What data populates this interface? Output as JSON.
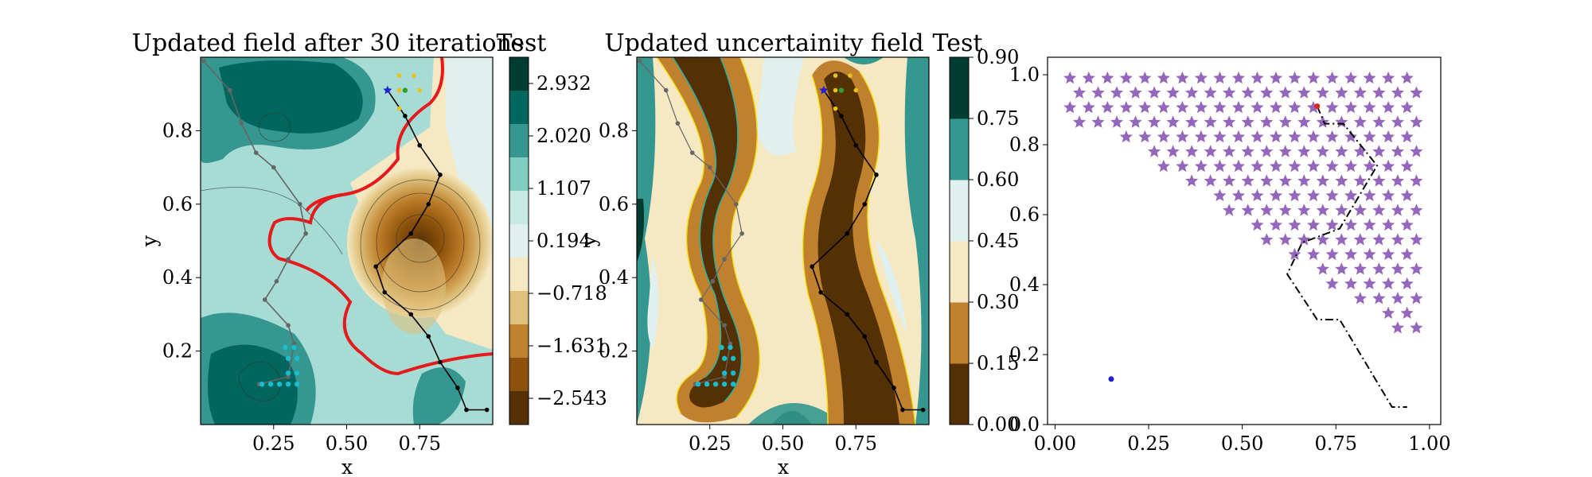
{
  "chart_data": [
    {
      "type": "contour",
      "title": "Updated field after 30 iterations",
      "colorbar_title": "Test",
      "xlabel": "x",
      "ylabel": "y",
      "xlim": [
        0,
        1
      ],
      "ylim": [
        0,
        1
      ],
      "xticks": [
        "0.25",
        "0.50",
        "0.75"
      ],
      "yticks": [
        "0.2",
        "0.4",
        "0.6",
        "0.8"
      ],
      "colorbar_ticks": [
        "2.932",
        "2.020",
        "1.107",
        "0.194",
        "−0.718",
        "−1.631",
        "−2.543"
      ],
      "colormap": [
        "#543005",
        "#8c510a",
        "#bf812d",
        "#dfc27d",
        "#f6e8c3",
        "#e0f0ee",
        "#c7eae5",
        "#80cdc1",
        "#35978f",
        "#01665e",
        "#003c30"
      ],
      "zero_contour_color": "#e41a1c",
      "path_gray": {
        "color": "#666666",
        "x": [
          0.01,
          0.1,
          0.14,
          0.19,
          0.25,
          0.34,
          0.36,
          0.3,
          0.26,
          0.22,
          0.3,
          0.32,
          0.3,
          0.2
        ],
        "y": [
          0.99,
          0.91,
          0.82,
          0.74,
          0.7,
          0.6,
          0.52,
          0.45,
          0.39,
          0.34,
          0.27,
          0.22,
          0.13,
          0.11
        ]
      },
      "path_black": {
        "color": "#000000",
        "x": [
          0.64,
          0.7,
          0.75,
          0.82,
          0.78,
          0.72,
          0.6,
          0.63,
          0.72,
          0.78,
          0.82,
          0.88,
          0.91,
          0.98
        ],
        "y": [
          0.91,
          0.84,
          0.76,
          0.68,
          0.6,
          0.52,
          0.43,
          0.36,
          0.3,
          0.24,
          0.17,
          0.1,
          0.04,
          0.04
        ]
      },
      "cyan_points": {
        "color": "#17becf",
        "x": [
          0.21,
          0.24,
          0.27,
          0.3,
          0.33,
          0.3,
          0.33,
          0.3,
          0.33,
          0.29,
          0.32
        ],
        "y": [
          0.11,
          0.11,
          0.11,
          0.11,
          0.11,
          0.14,
          0.14,
          0.18,
          0.18,
          0.21,
          0.21
        ]
      },
      "gold_points": {
        "color": "#e8c21a",
        "x": [
          0.68,
          0.73,
          0.68,
          0.75,
          0.68
        ],
        "y": [
          0.95,
          0.95,
          0.91,
          0.91,
          0.86
        ]
      },
      "blue_star": {
        "x": 0.64,
        "y": 0.91,
        "color": "#1f1fd6"
      },
      "green_point": {
        "x": 0.7,
        "y": 0.91,
        "color": "#2ca02c"
      }
    },
    {
      "type": "contour",
      "title": "Updated uncertainity field",
      "colorbar_title": "Test",
      "xlabel": "x",
      "ylabel": "y",
      "xlim": [
        0,
        1
      ],
      "ylim": [
        0,
        1
      ],
      "xticks": [
        "0.25",
        "0.50",
        "0.75"
      ],
      "yticks": [
        "0.2",
        "0.4",
        "0.6",
        "0.8"
      ],
      "colorbar_ticks": [
        "0.90",
        "0.75",
        "0.60",
        "0.45",
        "0.30",
        "0.15",
        "0.00"
      ],
      "levels": [
        0.0,
        0.15,
        0.3,
        0.45,
        0.6,
        0.75,
        0.9
      ],
      "colormap": [
        "#543005",
        "#bf812d",
        "#f6e8c3",
        "#e0f0ee",
        "#35978f",
        "#003c30"
      ],
      "contour_line_colors": [
        "#f2e21a",
        "#2ab0a0"
      ]
    },
    {
      "type": "scatter",
      "title": "",
      "xlabel": "",
      "ylabel": "",
      "xlim": [
        -0.02,
        1.03
      ],
      "ylim": [
        -0.0,
        1.05
      ],
      "xticks": [
        "0.00",
        "0.25",
        "0.50",
        "0.75",
        "1.00"
      ],
      "yticks": [
        "0.0",
        "0.2",
        "0.4",
        "0.6",
        "0.8",
        "1.0"
      ],
      "star_color": "#9467bd",
      "star_region": {
        "x_min": 0.04,
        "x_max": 0.98,
        "y_min": 0.2,
        "y_max": 0.99,
        "step_x": 0.05,
        "step_y": 0.042
      },
      "dash_dot_path": {
        "color": "#000000",
        "x": [
          0.7,
          0.72,
          0.77,
          0.86,
          0.76,
          0.66,
          0.62,
          0.7,
          0.76,
          0.9,
          0.94
        ],
        "y": [
          0.91,
          0.86,
          0.86,
          0.74,
          0.56,
          0.52,
          0.43,
          0.3,
          0.3,
          0.05,
          0.05
        ]
      },
      "red_point": {
        "x": 0.7,
        "y": 0.91,
        "color": "#d62728"
      },
      "blue_point": {
        "x": 0.15,
        "y": 0.13,
        "color": "#1f1fd6"
      }
    }
  ]
}
